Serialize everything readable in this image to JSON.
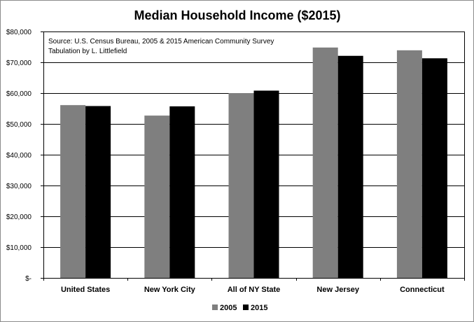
{
  "chart_data": {
    "type": "bar",
    "title": "Median Household Income ($2015)",
    "xlabel": "",
    "ylabel": "",
    "categories": [
      "United States",
      "New York City",
      "All of NY State",
      "New Jersey",
      "Connecticut"
    ],
    "series": [
      {
        "name": "2005",
        "color": "#7f7f7f",
        "values": [
          56100,
          52700,
          60000,
          74800,
          73900
        ]
      },
      {
        "name": "2015",
        "color": "#000000",
        "values": [
          55800,
          55700,
          60800,
          72100,
          71300
        ]
      }
    ],
    "ylim": [
      0,
      80000
    ],
    "yticks": [
      0,
      10000,
      20000,
      30000,
      40000,
      50000,
      60000,
      70000,
      80000
    ],
    "ytick_labels": [
      "$-",
      "$10,000",
      "$20,000",
      "$30,000",
      "$40,000",
      "$50,000",
      "$60,000",
      "$70,000",
      "$80,000"
    ],
    "grid": true,
    "legend": "bottom",
    "annotations": [
      "Source:  U.S. Census Bureau, 2005 & 2015 American Community Survey",
      "Tabulation by L. Littlefield"
    ]
  }
}
